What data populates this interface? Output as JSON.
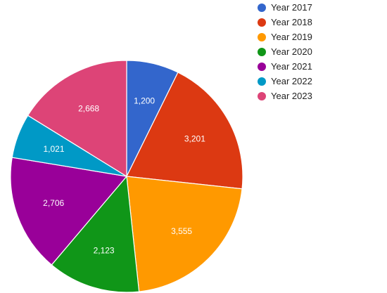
{
  "chart_data": {
    "type": "pie",
    "title": "",
    "legend_position": "right",
    "categories": [
      "Year 2017",
      "Year 2018",
      "Year 2019",
      "Year 2020",
      "Year 2021",
      "Year 2022",
      "Year 2023"
    ],
    "values": [
      1200,
      3201,
      3555,
      2123,
      2706,
      1021,
      2668
    ],
    "value_labels": [
      "1,200",
      "3,201",
      "3,555",
      "2,123",
      "2,706",
      "1,021",
      "2,668"
    ],
    "colors": [
      "#3366cc",
      "#dc3912",
      "#ff9900",
      "#109618",
      "#990099",
      "#0099c6",
      "#dd4477"
    ]
  }
}
